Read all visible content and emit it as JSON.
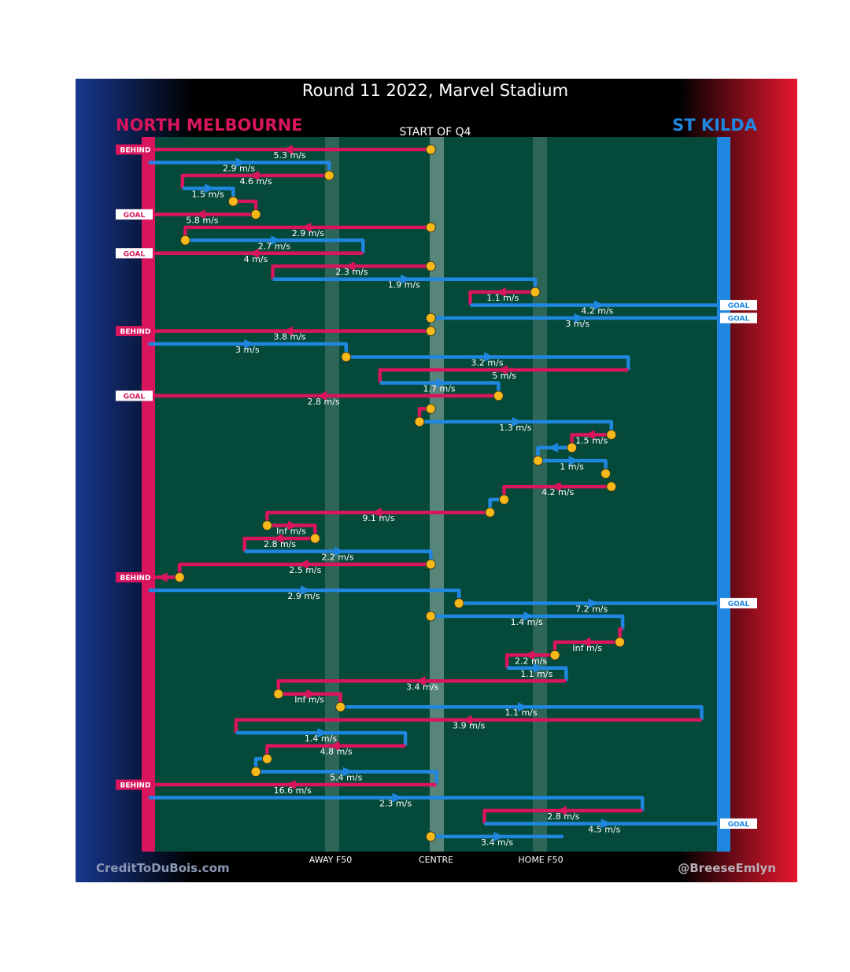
{
  "title": "Round 11 2022, Marvel Stadium",
  "quarter_label": "START OF Q4",
  "credits": {
    "left": "CreditToDuBois.com",
    "right": "@BreeseEmlyn"
  },
  "teams": {
    "home": {
      "name": "NORTH MELBOURNE",
      "color": "#d8155d"
    },
    "away": {
      "name": "ST KILDA",
      "color": "#1f87e0"
    }
  },
  "colors": {
    "field": "#05493b",
    "centre_strip": "#58857a",
    "f50_line": "#4e7c6f",
    "marker": "#f6b918",
    "scoring_left": "#d8155d",
    "scoring_right": "#1f87e0"
  },
  "chart_data": {
    "type": "chain_diagram",
    "title": "Round 11 2022, Marvel Stadium",
    "subtitle": "START OF Q4",
    "x_axis": {
      "scale": "field position",
      "ticks": [
        "AWAY F50",
        "CENTRE",
        "HOME F50"
      ]
    },
    "legend": {
      "left": "NORTH MELBOURNE",
      "right": "ST KILDA",
      "placement": "top"
    },
    "chains": [
      {
        "team": "NORTH MELBOURNE",
        "speed": "5.3 m/s",
        "path": [
          [
            0.49,
            0
          ],
          [
            -0.01,
            0
          ]
        ],
        "end": "BEHIND"
      },
      {
        "team": "ST KILDA",
        "speed": "2.9 m/s",
        "path": [
          [
            -0.01,
            1
          ],
          [
            0.31,
            1
          ],
          [
            0.31,
            2
          ]
        ]
      },
      {
        "team": "NORTH MELBOURNE",
        "speed": "4.6 m/s",
        "path": [
          [
            0.31,
            2
          ],
          [
            0.05,
            2
          ],
          [
            0.05,
            3
          ]
        ]
      },
      {
        "team": "ST KILDA",
        "speed": "1.5 m/s",
        "path": [
          [
            0.05,
            3
          ],
          [
            0.14,
            3
          ],
          [
            0.14,
            4
          ]
        ]
      },
      {
        "team": "NORTH MELBOURNE",
        "speed": "",
        "path": [
          [
            0.14,
            4
          ],
          [
            0.18,
            4
          ],
          [
            0.18,
            5
          ]
        ]
      },
      {
        "team": "NORTH MELBOURNE",
        "speed": "5.8 m/s",
        "path": [
          [
            0.18,
            5
          ],
          [
            -0.01,
            5
          ]
        ],
        "end": "GOAL"
      },
      {
        "team": "NORTH MELBOURNE",
        "speed": "2.9 m/s",
        "path": [
          [
            0.49,
            6
          ],
          [
            0.055,
            6
          ],
          [
            0.055,
            7
          ]
        ]
      },
      {
        "team": "ST KILDA",
        "speed": "2.7 m/s",
        "path": [
          [
            0.055,
            7
          ],
          [
            0.37,
            7
          ],
          [
            0.37,
            8
          ]
        ]
      },
      {
        "team": "NORTH MELBOURNE",
        "speed": "4 m/s",
        "path": [
          [
            0.37,
            8
          ],
          [
            -0.01,
            8
          ]
        ],
        "end": "GOAL"
      },
      {
        "team": "NORTH MELBOURNE",
        "speed": "2.3 m/s",
        "path": [
          [
            0.49,
            9
          ],
          [
            0.21,
            9
          ],
          [
            0.21,
            10
          ]
        ]
      },
      {
        "team": "ST KILDA",
        "speed": "1.9 m/s",
        "path": [
          [
            0.21,
            10
          ],
          [
            0.675,
            10
          ],
          [
            0.675,
            11
          ]
        ]
      },
      {
        "team": "NORTH MELBOURNE",
        "speed": "1.1 m/s",
        "path": [
          [
            0.675,
            11
          ],
          [
            0.56,
            11
          ],
          [
            0.56,
            12
          ]
        ]
      },
      {
        "team": "ST KILDA",
        "speed": "4.2 m/s",
        "path": [
          [
            0.56,
            12
          ],
          [
            1.01,
            12
          ]
        ],
        "end": "GOAL"
      },
      {
        "team": "ST KILDA",
        "speed": "3 m/s",
        "path": [
          [
            0.49,
            13
          ],
          [
            1.01,
            13
          ]
        ],
        "end": "GOAL"
      },
      {
        "team": "NORTH MELBOURNE",
        "speed": "3.8 m/s",
        "path": [
          [
            0.49,
            14
          ],
          [
            -0.01,
            14
          ]
        ],
        "end": "BEHIND"
      },
      {
        "team": "ST KILDA",
        "speed": "3 m/s",
        "path": [
          [
            -0.01,
            15
          ],
          [
            0.34,
            15
          ],
          [
            0.34,
            16
          ]
        ]
      },
      {
        "team": "ST KILDA",
        "speed": "3.2 m/s",
        "path": [
          [
            0.34,
            16
          ],
          [
            0.84,
            16
          ],
          [
            0.84,
            17
          ]
        ]
      },
      {
        "team": "NORTH MELBOURNE",
        "speed": "5 m/s",
        "path": [
          [
            0.84,
            17
          ],
          [
            0.4,
            17
          ],
          [
            0.4,
            18
          ]
        ]
      },
      {
        "team": "ST KILDA",
        "speed": "1.7 m/s",
        "path": [
          [
            0.4,
            18
          ],
          [
            0.61,
            18
          ],
          [
            0.61,
            19
          ]
        ]
      },
      {
        "team": "NORTH MELBOURNE",
        "speed": "2.8 m/s",
        "path": [
          [
            0.61,
            19
          ],
          [
            -0.01,
            19
          ]
        ],
        "end": "GOAL"
      },
      {
        "team": "NORTH MELBOURNE",
        "speed": "",
        "path": [
          [
            0.49,
            20
          ],
          [
            0.47,
            20
          ],
          [
            0.47,
            21
          ]
        ]
      },
      {
        "team": "ST KILDA",
        "speed": "1.3 m/s",
        "path": [
          [
            0.47,
            21
          ],
          [
            0.81,
            21
          ],
          [
            0.81,
            22
          ]
        ]
      },
      {
        "team": "NORTH MELBOURNE",
        "speed": "1.5 m/s",
        "path": [
          [
            0.81,
            22
          ],
          [
            0.74,
            22
          ],
          [
            0.74,
            23
          ]
        ]
      },
      {
        "team": "ST KILDA",
        "speed": "",
        "path": [
          [
            0.74,
            23
          ],
          [
            0.68,
            23
          ],
          [
            0.68,
            24
          ]
        ]
      },
      {
        "team": "ST KILDA",
        "speed": "1 m/s",
        "path": [
          [
            0.68,
            24
          ],
          [
            0.8,
            24
          ],
          [
            0.8,
            25
          ]
        ]
      },
      {
        "team": "NORTH MELBOURNE",
        "speed": "4.2 m/s",
        "path": [
          [
            0.81,
            26
          ],
          [
            0.62,
            26
          ],
          [
            0.62,
            27
          ]
        ]
      },
      {
        "team": "ST KILDA",
        "speed": "",
        "path": [
          [
            0.62,
            27
          ],
          [
            0.595,
            27
          ],
          [
            0.595,
            28
          ]
        ]
      },
      {
        "team": "NORTH MELBOURNE",
        "speed": "9.1 m/s",
        "path": [
          [
            0.595,
            28
          ],
          [
            0.2,
            28
          ],
          [
            0.2,
            29
          ]
        ]
      },
      {
        "team": "NORTH MELBOURNE",
        "speed": "Inf m/s",
        "path": [
          [
            0.2,
            29
          ],
          [
            0.285,
            29
          ],
          [
            0.285,
            30
          ]
        ]
      },
      {
        "team": "NORTH MELBOURNE",
        "speed": "2.8 m/s",
        "path": [
          [
            0.285,
            30
          ],
          [
            0.16,
            30
          ],
          [
            0.16,
            31
          ]
        ]
      },
      {
        "team": "ST KILDA",
        "speed": "2.2 m/s",
        "path": [
          [
            0.16,
            31
          ],
          [
            0.49,
            31
          ],
          [
            0.49,
            32
          ]
        ]
      },
      {
        "team": "NORTH MELBOURNE",
        "speed": "2.5 m/s",
        "path": [
          [
            0.49,
            32
          ],
          [
            0.045,
            32
          ],
          [
            0.045,
            33
          ]
        ]
      },
      {
        "team": "NORTH MELBOURNE",
        "speed": "",
        "path": [
          [
            0.045,
            33
          ],
          [
            -0.01,
            33
          ]
        ],
        "end": "BEHIND"
      },
      {
        "team": "ST KILDA",
        "speed": "2.9 m/s",
        "path": [
          [
            -0.01,
            34
          ],
          [
            0.54,
            34
          ],
          [
            0.54,
            35
          ]
        ]
      },
      {
        "team": "ST KILDA",
        "speed": "7.2 m/s",
        "path": [
          [
            0.54,
            35
          ],
          [
            1.01,
            35
          ]
        ],
        "end": "GOAL"
      },
      {
        "team": "ST KILDA",
        "speed": "1.4 m/s",
        "path": [
          [
            0.49,
            36
          ],
          [
            0.83,
            36
          ],
          [
            0.83,
            37
          ]
        ]
      },
      {
        "team": "NORTH MELBOURNE",
        "speed": "",
        "path": [
          [
            0.83,
            37
          ],
          [
            0.825,
            37
          ],
          [
            0.825,
            38
          ]
        ]
      },
      {
        "team": "NORTH MELBOURNE",
        "speed": "Inf m/s",
        "path": [
          [
            0.825,
            38
          ],
          [
            0.71,
            38
          ],
          [
            0.71,
            39
          ]
        ]
      },
      {
        "team": "NORTH MELBOURNE",
        "speed": "2.2 m/s",
        "path": [
          [
            0.71,
            39
          ],
          [
            0.625,
            39
          ],
          [
            0.625,
            40
          ]
        ]
      },
      {
        "team": "ST KILDA",
        "speed": "1.1 m/s",
        "path": [
          [
            0.625,
            40
          ],
          [
            0.73,
            40
          ],
          [
            0.73,
            41
          ]
        ]
      },
      {
        "team": "NORTH MELBOURNE",
        "speed": "3.4 m/s",
        "path": [
          [
            0.73,
            41
          ],
          [
            0.22,
            41
          ],
          [
            0.22,
            42
          ]
        ]
      },
      {
        "team": "NORTH MELBOURNE",
        "speed": "Inf m/s",
        "path": [
          [
            0.22,
            42
          ],
          [
            0.33,
            42
          ],
          [
            0.33,
            43
          ]
        ]
      },
      {
        "team": "ST KILDA",
        "speed": "1.1 m/s",
        "path": [
          [
            0.33,
            43
          ],
          [
            0.97,
            43
          ],
          [
            0.97,
            44
          ]
        ]
      },
      {
        "team": "NORTH MELBOURNE",
        "speed": "3.9 m/s",
        "path": [
          [
            0.97,
            44
          ],
          [
            0.145,
            44
          ],
          [
            0.145,
            45
          ]
        ]
      },
      {
        "team": "ST KILDA",
        "speed": "1.4 m/s",
        "path": [
          [
            0.145,
            45
          ],
          [
            0.445,
            45
          ],
          [
            0.445,
            46
          ]
        ]
      },
      {
        "team": "NORTH MELBOURNE",
        "speed": "4.8 m/s",
        "path": [
          [
            0.445,
            46
          ],
          [
            0.2,
            46
          ],
          [
            0.2,
            47
          ]
        ]
      },
      {
        "team": "ST KILDA",
        "speed": "",
        "path": [
          [
            0.2,
            47
          ],
          [
            0.18,
            47
          ],
          [
            0.18,
            48
          ]
        ]
      },
      {
        "team": "ST KILDA",
        "speed": "5.4 m/s",
        "path": [
          [
            0.18,
            48
          ],
          [
            0.5,
            48
          ],
          [
            0.5,
            49
          ]
        ]
      },
      {
        "team": "NORTH MELBOURNE",
        "speed": "16.6 m/s",
        "path": [
          [
            0.5,
            49
          ],
          [
            -0.01,
            49
          ]
        ],
        "end": "BEHIND"
      },
      {
        "team": "ST KILDA",
        "speed": "2.3 m/s",
        "path": [
          [
            -0.01,
            50
          ],
          [
            0.865,
            50
          ],
          [
            0.865,
            51
          ]
        ]
      },
      {
        "team": "NORTH MELBOURNE",
        "speed": "2.8 m/s",
        "path": [
          [
            0.865,
            51
          ],
          [
            0.585,
            51
          ],
          [
            0.585,
            52
          ]
        ]
      },
      {
        "team": "ST KILDA",
        "speed": "4.5 m/s",
        "path": [
          [
            0.585,
            52
          ],
          [
            1.01,
            52
          ]
        ],
        "end": "GOAL"
      },
      {
        "team": "ST KILDA",
        "speed": "3.4 m/s",
        "path": [
          [
            0.49,
            53
          ],
          [
            0.725,
            53
          ]
        ]
      }
    ],
    "markers": [
      [
        0.49,
        0
      ],
      [
        0.31,
        2
      ],
      [
        0.14,
        4
      ],
      [
        0.18,
        5
      ],
      [
        0.49,
        6
      ],
      [
        0.055,
        7
      ],
      [
        0.49,
        9
      ],
      [
        0.675,
        11
      ],
      [
        0.49,
        13
      ],
      [
        0.49,
        14
      ],
      [
        0.34,
        16
      ],
      [
        0.61,
        19
      ],
      [
        0.49,
        20
      ],
      [
        0.47,
        21
      ],
      [
        0.81,
        22
      ],
      [
        0.74,
        23
      ],
      [
        0.68,
        24
      ],
      [
        0.8,
        25
      ],
      [
        0.81,
        26
      ],
      [
        0.62,
        27
      ],
      [
        0.595,
        28
      ],
      [
        0.2,
        29
      ],
      [
        0.285,
        30
      ],
      [
        0.49,
        32
      ],
      [
        0.045,
        33
      ],
      [
        0.54,
        35
      ],
      [
        0.49,
        36
      ],
      [
        0.825,
        38
      ],
      [
        0.71,
        39
      ],
      [
        0.22,
        42
      ],
      [
        0.33,
        43
      ],
      [
        0.2,
        47
      ],
      [
        0.18,
        48
      ],
      [
        0.49,
        53
      ]
    ]
  }
}
